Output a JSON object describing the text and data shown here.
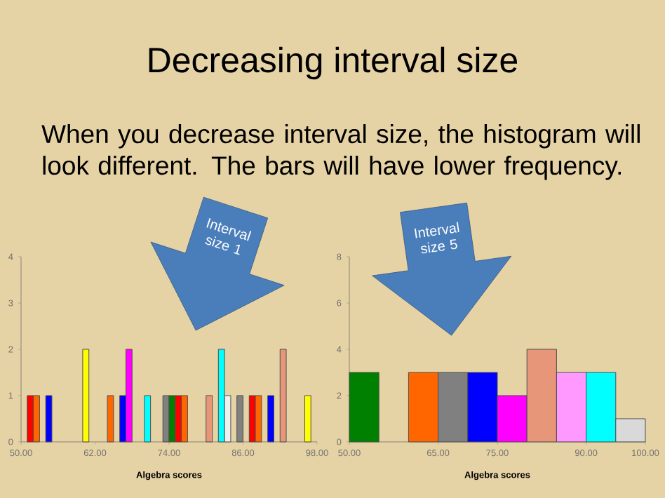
{
  "chart_data": [
    {
      "type": "histogram",
      "title": "Decreasing interval size",
      "annotations": [
        "When you decrease interval size, the histogram will look different. The bars will have lower frequency.",
        "Interval size 1"
      ],
      "xlabel": "Algebra scores",
      "bins": [
        50,
        51,
        52,
        53,
        54,
        55,
        56,
        57,
        58,
        59,
        60,
        61,
        62,
        63,
        64,
        65,
        66,
        67,
        68,
        69,
        70,
        71,
        72,
        73,
        74,
        75,
        76,
        77,
        78,
        79,
        80,
        81,
        82,
        83,
        84,
        85,
        86,
        87,
        88,
        89,
        90,
        91,
        92,
        93,
        94,
        95,
        96,
        97,
        98
      ],
      "values": [
        0,
        1,
        1,
        0,
        1,
        0,
        0,
        0,
        0,
        0,
        2,
        0,
        0,
        0,
        1,
        0,
        1,
        2,
        0,
        0,
        1,
        0,
        0,
        1,
        1,
        1,
        1,
        0,
        0,
        0,
        1,
        0,
        2,
        1,
        0,
        1,
        0,
        1,
        1,
        0,
        1,
        0,
        2,
        0,
        0,
        0,
        1,
        0
      ],
      "colors": [
        null,
        "#ff0000",
        "#ff6600",
        null,
        "#0000ff",
        null,
        null,
        null,
        null,
        null,
        "#ffff00",
        null,
        null,
        null,
        "#ff6600",
        null,
        "#0000ff",
        "#ff00ff",
        null,
        null,
        "#00ffff",
        null,
        null,
        "#808080",
        "#008000",
        "#ff0000",
        "#ff6600",
        null,
        null,
        null,
        "#e8967a",
        null,
        "#00ffff",
        "#f0f0f0",
        null,
        "#808080",
        null,
        "#ff0000",
        "#ff6600",
        null,
        "#0000ff",
        null,
        "#e8967a",
        null,
        null,
        null,
        "#ffff00",
        null
      ],
      "xlim": [
        50,
        98
      ],
      "ylim": [
        0,
        4
      ],
      "xticks": [
        {
          "value": 50,
          "label": "50.00"
        },
        {
          "value": 62,
          "label": "62.00"
        },
        {
          "value": 74,
          "label": "74.00"
        },
        {
          "value": 86,
          "label": "86.00"
        },
        {
          "value": 98,
          "label": "98.00"
        }
      ],
      "yticks": [
        0,
        1,
        2,
        3,
        4
      ]
    },
    {
      "type": "histogram",
      "annotations": [
        "Interval size 5"
      ],
      "xlabel": "Algebra scores",
      "bins": [
        50,
        55,
        60,
        65,
        70,
        75,
        80,
        85,
        90,
        95,
        100
      ],
      "values": [
        3,
        0,
        3,
        3,
        3,
        2,
        4,
        3,
        3,
        1
      ],
      "colors": [
        "#008000",
        null,
        "#ff6600",
        "#808080",
        "#0000ff",
        "#ff00ff",
        "#e8967a",
        "#ff99ff",
        "#00ffff",
        "#d9d9d9"
      ],
      "xlim": [
        50,
        100
      ],
      "ylim": [
        0,
        8
      ],
      "xticks": [
        {
          "value": 50,
          "label": "50.00"
        },
        {
          "value": 65,
          "label": "65.00"
        },
        {
          "value": 75,
          "label": "75.00"
        },
        {
          "value": 90,
          "label": "90.00"
        },
        {
          "value": 100,
          "label": "100.00"
        }
      ],
      "yticks": [
        0,
        2,
        4,
        6,
        8
      ]
    }
  ]
}
